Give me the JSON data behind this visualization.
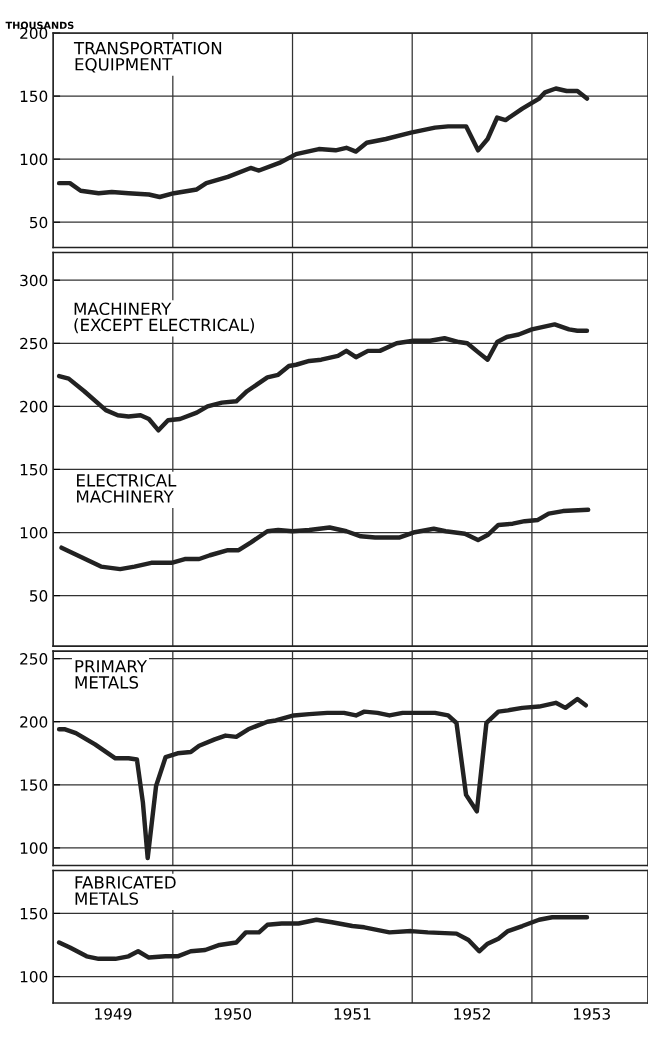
{
  "chart_data": [
    {
      "type": "line",
      "ylabel": "THOUSANDS",
      "xlim": [
        1949.0,
        1953.97
      ],
      "ylim": [
        30,
        200
      ],
      "yticks": [
        50,
        100,
        150,
        200
      ],
      "grid": "y",
      "tick_labels": "y",
      "ref_lines": [
        {
          "axis": "x",
          "value": 1950
        },
        {
          "axis": "x",
          "value": 1951
        },
        {
          "axis": "x",
          "value": 1952
        },
        {
          "axis": "x",
          "value": 1953
        }
      ],
      "series": [
        {
          "name": "TRANSPORTATION\nEQUIPMENT",
          "color": "#222222",
          "x": [
            1949.05,
            1949.14,
            1949.23,
            1949.38,
            1949.49,
            1949.63,
            1949.8,
            1949.89,
            1950.01,
            1950.2,
            1950.28,
            1950.46,
            1950.65,
            1950.72,
            1950.89,
            1951.03,
            1951.22,
            1951.36,
            1951.45,
            1951.53,
            1951.62,
            1951.78,
            1951.99,
            1952.19,
            1952.3,
            1952.45,
            1952.55,
            1952.63,
            1952.71,
            1952.78,
            1952.92,
            1953.06,
            1953.11,
            1953.2,
            1953.29,
            1953.38,
            1953.46
          ],
          "values": [
            81,
            81,
            75,
            73,
            74,
            73,
            72,
            70,
            73,
            76,
            81,
            86,
            93,
            91,
            97,
            104,
            108,
            107,
            109,
            106,
            113,
            116,
            121,
            125,
            126,
            126,
            107,
            116,
            133,
            131,
            140,
            148,
            153,
            156,
            154,
            154,
            148
          ]
        }
      ]
    },
    {
      "type": "line",
      "xlim": [
        1949.0,
        1953.97
      ],
      "ylim": [
        10,
        322
      ],
      "yticks": [
        50,
        100,
        150,
        200,
        250,
        300
      ],
      "grid": "y",
      "tick_labels": "y",
      "ref_lines": [
        {
          "axis": "x",
          "value": 1950
        },
        {
          "axis": "x",
          "value": 1951
        },
        {
          "axis": "x",
          "value": 1952
        },
        {
          "axis": "x",
          "value": 1953
        }
      ],
      "series": [
        {
          "name": "MACHINERY\n(EXCEPT ELECTRICAL)",
          "color": "#222222",
          "x": [
            1949.05,
            1949.13,
            1949.26,
            1949.44,
            1949.54,
            1949.63,
            1949.73,
            1949.8,
            1949.88,
            1949.96,
            1950.06,
            1950.2,
            1950.29,
            1950.41,
            1950.53,
            1950.62,
            1950.79,
            1950.88,
            1950.97,
            1951.03,
            1951.14,
            1951.24,
            1951.38,
            1951.45,
            1951.53,
            1951.63,
            1951.73,
            1951.87,
            1952.01,
            1952.15,
            1952.27,
            1952.39,
            1952.46,
            1952.55,
            1952.63,
            1952.71,
            1952.79,
            1952.89,
            1953.0,
            1953.19,
            1953.31,
            1953.38,
            1953.46
          ],
          "values": [
            224,
            222,
            212,
            197,
            193,
            192,
            193,
            190,
            181,
            189,
            190,
            195,
            200,
            203,
            204,
            212,
            223,
            225,
            232,
            233,
            236,
            237,
            240,
            244,
            239,
            244,
            244,
            250,
            252,
            252,
            254,
            251,
            250,
            243,
            237,
            251,
            255,
            257,
            261,
            265,
            261,
            260,
            260
          ]
        },
        {
          "name": "ELECTRICAL\nMACHINERY",
          "color": "#222222",
          "x": [
            1949.07,
            1949.18,
            1949.4,
            1949.56,
            1949.68,
            1949.82,
            1949.99,
            1950.1,
            1950.22,
            1950.31,
            1950.46,
            1950.55,
            1950.65,
            1950.79,
            1950.88,
            1951.0,
            1951.14,
            1951.31,
            1951.45,
            1951.57,
            1951.69,
            1951.89,
            1952.01,
            1952.18,
            1952.28,
            1952.44,
            1952.55,
            1952.63,
            1952.72,
            1952.84,
            1952.94,
            1953.05,
            1953.14,
            1953.26,
            1953.47
          ],
          "values": [
            88,
            83,
            73,
            71,
            73,
            76,
            76,
            79,
            79,
            82,
            86,
            86,
            92,
            101,
            102,
            101,
            102,
            104,
            101,
            97,
            96,
            96,
            100,
            103,
            101,
            99,
            94,
            98,
            106,
            107,
            109,
            110,
            115,
            117,
            118
          ]
        }
      ]
    },
    {
      "type": "line",
      "xlim": [
        1949.0,
        1953.97
      ],
      "ylim": [
        86,
        256
      ],
      "yticks": [
        100,
        150,
        200,
        250
      ],
      "grid": "y",
      "tick_labels": "y",
      "ref_lines": [
        {
          "axis": "x",
          "value": 1950
        },
        {
          "axis": "x",
          "value": 1951
        },
        {
          "axis": "x",
          "value": 1952
        },
        {
          "axis": "x",
          "value": 1953
        }
      ],
      "series": [
        {
          "name": "PRIMARY\nMETALS",
          "color": "#222222",
          "x": [
            1949.05,
            1949.1,
            1949.19,
            1949.35,
            1949.52,
            1949.63,
            1949.7,
            1949.75,
            1949.79,
            1949.86,
            1949.94,
            1950.04,
            1950.15,
            1950.22,
            1950.35,
            1950.44,
            1950.53,
            1950.63,
            1950.79,
            1950.86,
            1951.01,
            1951.14,
            1951.29,
            1951.43,
            1951.53,
            1951.6,
            1951.71,
            1951.81,
            1951.92,
            1952.19,
            1952.3,
            1952.37,
            1952.45,
            1952.54,
            1952.62,
            1952.72,
            1952.8,
            1952.92,
            1953.06,
            1953.2,
            1953.28,
            1953.38,
            1953.45
          ],
          "values": [
            194,
            194,
            191,
            182,
            171,
            171,
            170,
            136,
            92,
            149,
            172,
            175,
            176,
            181,
            186,
            189,
            188,
            194,
            200,
            201,
            205,
            206,
            207,
            207,
            205,
            208,
            207,
            205,
            207,
            207,
            205,
            199,
            142,
            129,
            199,
            208,
            209,
            211,
            212,
            215,
            211,
            218,
            213
          ]
        }
      ]
    },
    {
      "type": "line",
      "xlim": [
        1949.0,
        1953.97
      ],
      "ylim": [
        79,
        184
      ],
      "yticks": [
        100,
        150
      ],
      "grid": "y",
      "xticks": [
        {
          "value": 1949.5,
          "label": "1949"
        },
        {
          "value": 1950.5,
          "label": "1950"
        },
        {
          "value": 1951.5,
          "label": "1951"
        },
        {
          "value": 1952.5,
          "label": "1952"
        },
        {
          "value": 1953.5,
          "label": "1953"
        }
      ],
      "ref_lines": [
        {
          "axis": "x",
          "value": 1950
        },
        {
          "axis": "x",
          "value": 1951
        },
        {
          "axis": "x",
          "value": 1952
        },
        {
          "axis": "x",
          "value": 1953
        }
      ],
      "series": [
        {
          "name": "FABRICATED\nMETALS",
          "color": "#222222",
          "x": [
            1949.05,
            1949.14,
            1949.28,
            1949.38,
            1949.52,
            1949.63,
            1949.71,
            1949.8,
            1949.94,
            1950.04,
            1950.15,
            1950.27,
            1950.39,
            1950.53,
            1950.61,
            1950.72,
            1950.79,
            1950.91,
            1951.05,
            1951.2,
            1951.33,
            1951.5,
            1951.6,
            1951.81,
            1951.99,
            1952.13,
            1952.37,
            1952.47,
            1952.56,
            1952.63,
            1952.72,
            1952.8,
            1952.92,
            1953.06,
            1953.17,
            1953.34,
            1953.46
          ],
          "values": [
            127,
            123,
            116,
            114,
            114,
            116,
            120,
            115,
            116,
            116,
            120,
            121,
            125,
            127,
            135,
            135,
            141,
            142,
            142,
            145,
            143,
            140,
            139,
            135,
            136,
            135,
            134,
            129,
            120,
            126,
            130,
            136,
            140,
            145,
            147,
            147,
            147
          ]
        }
      ]
    }
  ]
}
